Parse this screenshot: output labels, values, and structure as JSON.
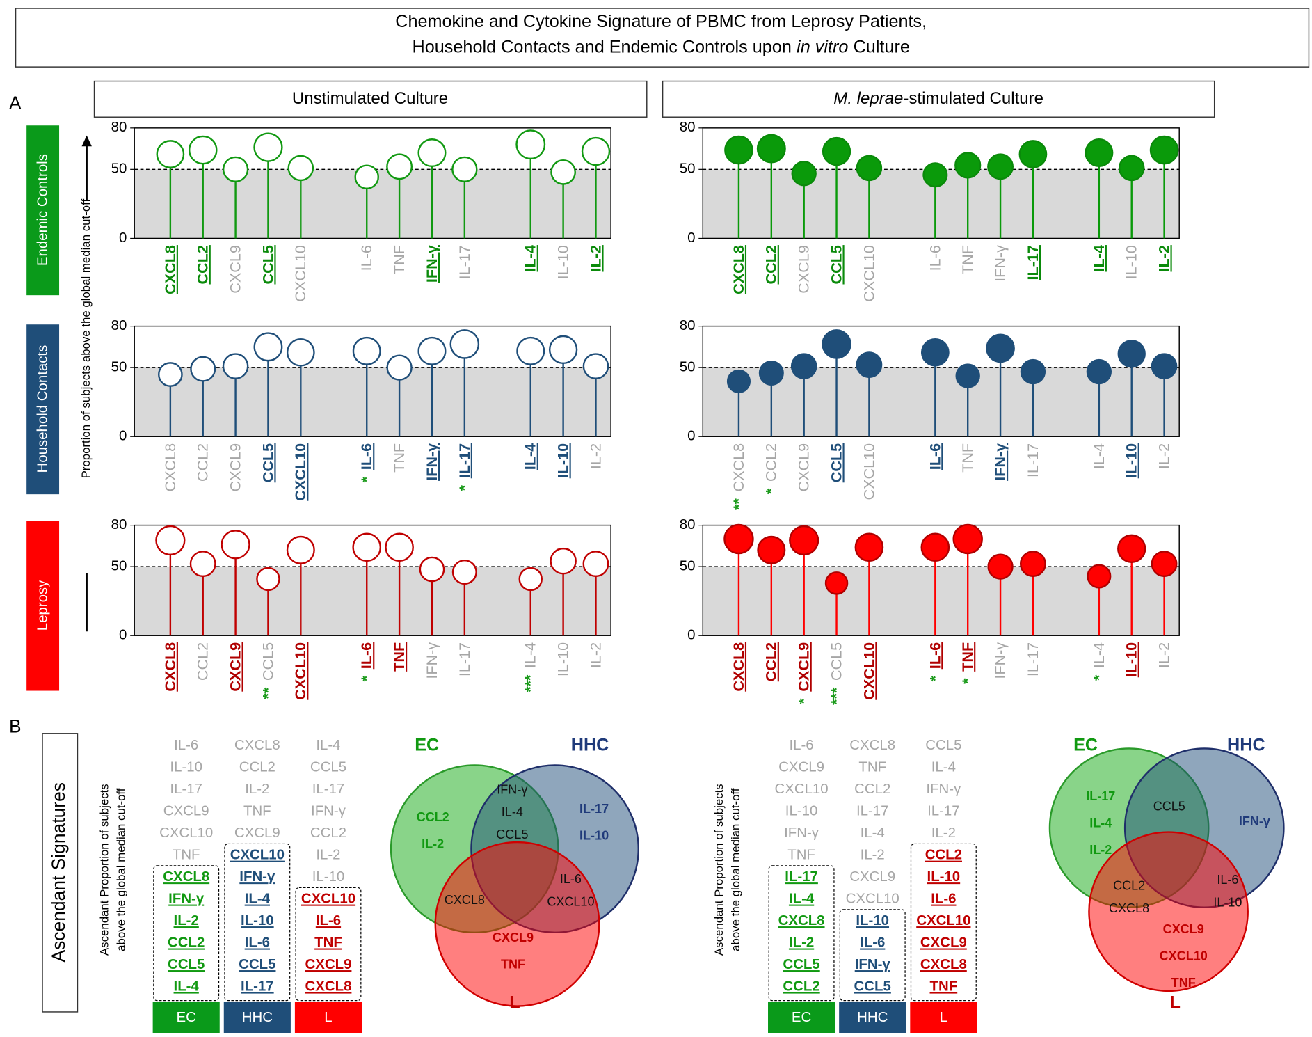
{
  "title": {
    "line1": "Chemokine and Cytokine Signature of PBMC from Leprosy Patients,",
    "line2": [
      "Household Contacts and Endemic Controls upon",
      "in vitro",
      "Culture"
    ]
  },
  "panel_a": {
    "letter": "A",
    "columns": [
      [
        "Unstimulated Culture"
      ],
      [
        "M. leprae",
        "-stimulated Culture"
      ]
    ],
    "rows": [
      {
        "label": "Endemic Controls",
        "color": "#0a9a1a"
      },
      {
        "label": "Household Contacts",
        "color": "#1f4e79"
      },
      {
        "label": "Leprosy",
        "color": "#ff0000"
      }
    ],
    "y_axis_label": "Proportion of subjects above the global median cut-off"
  },
  "chart_data": [
    {
      "type": "lollipop",
      "color": "#119911",
      "label_color": "#0a8a0a",
      "filled": false,
      "categories": [
        "CXCL8",
        "CCL2",
        "CXCL9",
        "CCL5",
        "CXCL10",
        "IL-6",
        "TNF",
        "IFN-γ",
        "IL-17",
        "IL-4",
        "IL-10",
        "IL-2"
      ],
      "values": [
        61,
        64,
        50,
        66,
        51,
        44.5,
        52,
        62,
        50,
        68,
        48,
        63
      ],
      "highlighted": [
        true,
        true,
        false,
        true,
        false,
        false,
        false,
        true,
        false,
        true,
        false,
        true
      ],
      "annotations": [
        null,
        null,
        null,
        null,
        null,
        null,
        null,
        null,
        null,
        null,
        null,
        null
      ],
      "ylim": [
        0,
        80
      ],
      "yticks": [
        0,
        50,
        80
      ],
      "reference_line": 50
    },
    {
      "type": "lollipop",
      "color": "#0a9a0a",
      "label_color": "#0a8a0a",
      "filled": true,
      "categories": [
        "CXCL8",
        "CCL2",
        "CXCL9",
        "CCL5",
        "CXCL10",
        "IL-6",
        "TNF",
        "IFN-γ",
        "IL-17",
        "IL-4",
        "IL-10",
        "IL-2"
      ],
      "values": [
        64,
        65,
        47,
        63,
        51,
        46,
        53,
        52,
        61,
        62,
        51,
        64
      ],
      "highlighted": [
        true,
        true,
        false,
        true,
        false,
        false,
        false,
        false,
        true,
        true,
        false,
        true
      ],
      "annotations": [
        null,
        null,
        null,
        null,
        null,
        null,
        null,
        null,
        null,
        null,
        null,
        null
      ],
      "ylim": [
        0,
        80
      ],
      "yticks": [
        0,
        50,
        80
      ],
      "reference_line": 50
    },
    {
      "type": "lollipop",
      "color": "#1f4e79",
      "label_color": "#1f4e79",
      "filled": false,
      "categories": [
        "CXCL8",
        "CCL2",
        "CXCL9",
        "CCL5",
        "CXCL10",
        "IL-6",
        "TNF",
        "IFN-γ",
        "IL-17",
        "IL-4",
        "IL-10",
        "IL-2"
      ],
      "values": [
        45,
        49,
        51,
        65,
        61,
        62,
        50,
        62,
        67,
        62,
        63,
        51
      ],
      "highlighted": [
        false,
        false,
        false,
        true,
        true,
        true,
        false,
        true,
        true,
        true,
        true,
        false
      ],
      "annotations": [
        null,
        null,
        null,
        null,
        null,
        "*",
        null,
        null,
        "*",
        null,
        null,
        null
      ],
      "ylim": [
        0,
        80
      ],
      "yticks": [
        0,
        50,
        80
      ],
      "reference_line": 50
    },
    {
      "type": "lollipop",
      "color": "#1f4e79",
      "label_color": "#1f4e79",
      "filled": true,
      "categories": [
        "CXCL8",
        "CCL2",
        "CXCL9",
        "CCL5",
        "CXCL10",
        "IL-6",
        "TNF",
        "IFN-γ",
        "IL-17",
        "IL-4",
        "IL-10",
        "IL-2"
      ],
      "values": [
        40,
        46,
        51,
        67,
        52,
        61,
        44,
        64,
        47,
        47,
        60,
        51
      ],
      "highlighted": [
        false,
        false,
        false,
        true,
        false,
        true,
        false,
        true,
        false,
        false,
        true,
        false
      ],
      "annotations": [
        "**",
        "*",
        null,
        null,
        null,
        null,
        null,
        null,
        null,
        null,
        null,
        null
      ],
      "ylim": [
        0,
        80
      ],
      "yticks": [
        0,
        50,
        80
      ],
      "reference_line": 50
    },
    {
      "type": "lollipop",
      "color": "#c00000",
      "label_color": "#b00000",
      "filled": false,
      "categories": [
        "CXCL8",
        "CCL2",
        "CXCL9",
        "CCL5",
        "CXCL10",
        "IL-6",
        "TNF",
        "IFN-γ",
        "IL-17",
        "IL-4",
        "IL-10",
        "IL-2"
      ],
      "values": [
        69,
        52,
        66,
        41,
        62,
        64,
        64,
        48,
        46,
        41,
        54,
        52
      ],
      "highlighted": [
        true,
        false,
        true,
        false,
        true,
        true,
        true,
        false,
        false,
        false,
        false,
        false
      ],
      "annotations": [
        null,
        null,
        null,
        "**",
        null,
        "*",
        null,
        null,
        null,
        "***",
        null,
        null
      ],
      "ylim": [
        0,
        80
      ],
      "yticks": [
        0,
        50,
        80
      ],
      "reference_line": 50
    },
    {
      "type": "lollipop",
      "color": "#ff0000",
      "label_color": "#b00000",
      "filled": true,
      "categories": [
        "CXCL8",
        "CCL2",
        "CXCL9",
        "CCL5",
        "CXCL10",
        "IL-6",
        "TNF",
        "IFN-γ",
        "IL-17",
        "IL-4",
        "IL-10",
        "IL-2"
      ],
      "values": [
        70,
        62,
        69,
        38,
        64,
        64,
        70,
        50,
        52,
        43,
        63,
        52
      ],
      "highlighted": [
        true,
        true,
        true,
        false,
        true,
        true,
        true,
        false,
        false,
        false,
        true,
        false
      ],
      "annotations": [
        null,
        null,
        "*",
        "***",
        null,
        "*",
        "*",
        null,
        null,
        "*",
        null,
        null
      ],
      "ylim": [
        0,
        80
      ],
      "yticks": [
        0,
        50,
        80
      ],
      "reference_line": 50
    }
  ],
  "annotation_color": "#1a9a1a",
  "panel_b": {
    "letter": "B",
    "title": "Ascendant Signatures",
    "sections": [
      {
        "y_label": [
          "Ascendant Proportion of subjects",
          "above the global median cut-off"
        ],
        "columns": [
          {
            "label": "EC",
            "color": "#0a9a1a",
            "text_color": "#119911",
            "others": [
              "IL-6",
              "IL-10",
              "IL-17",
              "CXCL9",
              "CXCL10",
              "TNF"
            ],
            "signature": [
              "CXCL8",
              "IFN-γ",
              "IL-2",
              "CCL2",
              "CCL5",
              "IL-4"
            ]
          },
          {
            "label": "HHC",
            "color": "#1f4e79",
            "text_color": "#1f4e79",
            "others": [
              "CXCL8",
              "CCL2",
              "IL-2",
              "TNF",
              "CXCL9"
            ],
            "signature": [
              "CXCL10",
              "IFN-γ",
              "IL-4",
              "IL-10",
              "IL-6",
              "CCL5",
              "IL-17"
            ]
          },
          {
            "label": "L",
            "color": "#ff0000",
            "text_color": "#c00000",
            "others": [
              "IL-4",
              "CCL5",
              "IL-17",
              "IFN-γ",
              "CCL2",
              "IL-2",
              "IL-10"
            ],
            "signature": [
              "CXCL10",
              "IL-6",
              "TNF",
              "CXCL9",
              "CXCL8"
            ]
          }
        ],
        "venn": {
          "labels": {
            "ec": "EC",
            "hhc": "HHC",
            "l": "L"
          },
          "regions": {
            "ec_only": [
              "CCL2",
              "IL-2"
            ],
            "ec_hhc": [
              "IFN-γ",
              "IL-4",
              "CCL5"
            ],
            "hhc_only": [
              "IL-17",
              "IL-10"
            ],
            "hhc_l": [
              "IL-6",
              "CXCL10"
            ],
            "ec_l": [
              "CXCL8"
            ],
            "l_only": [
              "CXCL9",
              "TNF"
            ]
          }
        }
      },
      {
        "y_label": [
          "Ascendant Proportion of subjects",
          "above the global median cut-off"
        ],
        "columns": [
          {
            "label": "EC",
            "color": "#0a9a1a",
            "text_color": "#119911",
            "others": [
              "IL-6",
              "CXCL9",
              "CXCL10",
              "IL-10",
              "IFN-γ",
              "TNF"
            ],
            "signature": [
              "IL-17",
              "IL-4",
              "CXCL8",
              "IL-2",
              "CCL5",
              "CCL2"
            ]
          },
          {
            "label": "HHC",
            "color": "#1f4e79",
            "text_color": "#1f4e79",
            "others": [
              "CXCL8",
              "TNF",
              "CCL2",
              "IL-17",
              "IL-4",
              "IL-2",
              "CXCL9",
              "CXCL10"
            ],
            "signature": [
              "IL-10",
              "IL-6",
              "IFN-γ",
              "CCL5"
            ]
          },
          {
            "label": "L",
            "color": "#ff0000",
            "text_color": "#c00000",
            "others": [
              "CCL5",
              "IL-4",
              "IFN-γ",
              "IL-17",
              "IL-2"
            ],
            "signature": [
              "CCL2",
              "IL-10",
              "IL-6",
              "CXCL10",
              "CXCL9",
              "CXCL8",
              "TNF"
            ]
          }
        ],
        "venn": {
          "labels": {
            "ec": "EC",
            "hhc": "HHC",
            "l": "L"
          },
          "regions": {
            "ec_only": [
              "IL-17",
              "IL-4",
              "IL-2"
            ],
            "ec_hhc": [
              "CCL5"
            ],
            "hhc_only": [
              "IFN-γ"
            ],
            "ec_l": [
              "CCL2",
              "CXCL8"
            ],
            "hhc_l": [
              "IL-6",
              "IL-10"
            ],
            "l_only": [
              "CXCL9",
              "CXCL10",
              "TNF"
            ]
          }
        }
      }
    ]
  }
}
